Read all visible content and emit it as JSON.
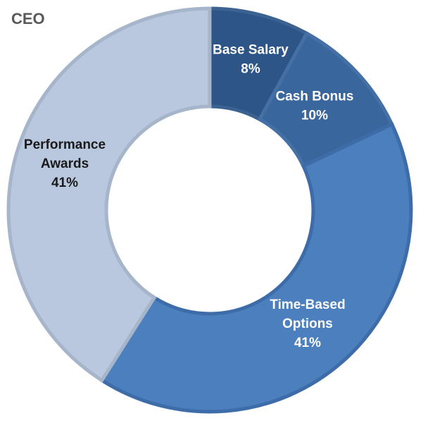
{
  "chart_data": {
    "type": "pie",
    "style": "donut",
    "title": "CEO",
    "slices": [
      {
        "name": "Base Salary",
        "value": 8,
        "label": "8%",
        "label_lines": [
          "Base Salary",
          "8%"
        ],
        "color": "#2e5587",
        "border": "#3b6290",
        "text_color": "#ffffff"
      },
      {
        "name": "Cash Bonus",
        "value": 10,
        "label": "10%",
        "label_lines": [
          "Cash Bonus",
          "10%"
        ],
        "color": "#3a669e",
        "border": "#4470a5",
        "text_color": "#ffffff"
      },
      {
        "name": "Time-Based Options",
        "value": 41,
        "label": "41%",
        "label_lines": [
          "Time-Based",
          "Options",
          "41%"
        ],
        "color": "#4b7fbd",
        "border": "#3d6ca9",
        "text_color": "#ffffff"
      },
      {
        "name": "Performance Awards",
        "value": 41,
        "label": "41%",
        "label_lines": [
          "Performance",
          "Awards",
          "41%"
        ],
        "color": "#b9c8df",
        "border": "#a6b5ca",
        "text_color": "#1a1a1a"
      }
    ],
    "start_angle_deg": 0,
    "direction": "clockwise",
    "legend": "none"
  }
}
